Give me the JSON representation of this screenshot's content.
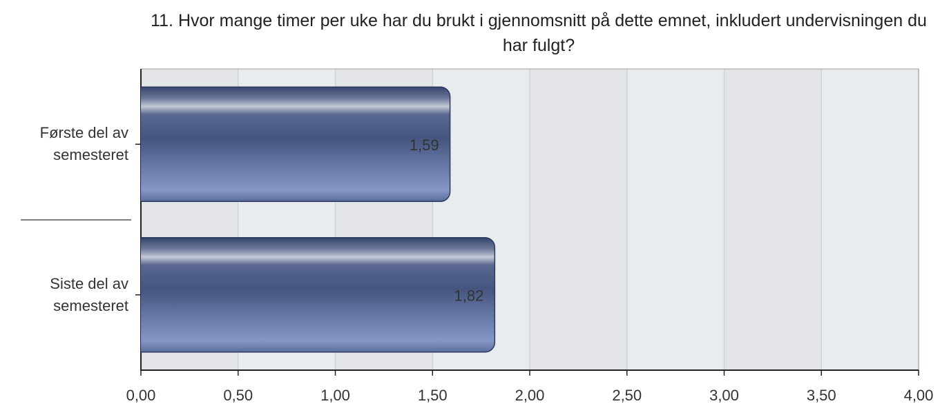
{
  "chart_data": {
    "type": "bar",
    "orientation": "horizontal",
    "title": "11. Hvor mange timer per uke har du brukt i gjennomsnitt på dette emnet, inkludert undervisningen du har fulgt?",
    "categories": [
      "Første del av semesteret",
      "Siste del av semesteret"
    ],
    "values": [
      1.59,
      1.82
    ],
    "value_labels": [
      "1,59",
      "1,82"
    ],
    "color": "#4a5a88",
    "xlim": [
      0,
      4
    ],
    "xticks": [
      {
        "value": 0,
        "label": "0,00"
      },
      {
        "value": 0.5,
        "label": "0,50"
      },
      {
        "value": 1,
        "label": "1,00"
      },
      {
        "value": 1.5,
        "label": "1,50"
      },
      {
        "value": 2,
        "label": "2,00"
      },
      {
        "value": 2.5,
        "label": "2,50"
      },
      {
        "value": 3,
        "label": "3,00"
      },
      {
        "value": 3.5,
        "label": "3,50"
      },
      {
        "value": 4,
        "label": "4,00"
      }
    ],
    "grid": true
  }
}
